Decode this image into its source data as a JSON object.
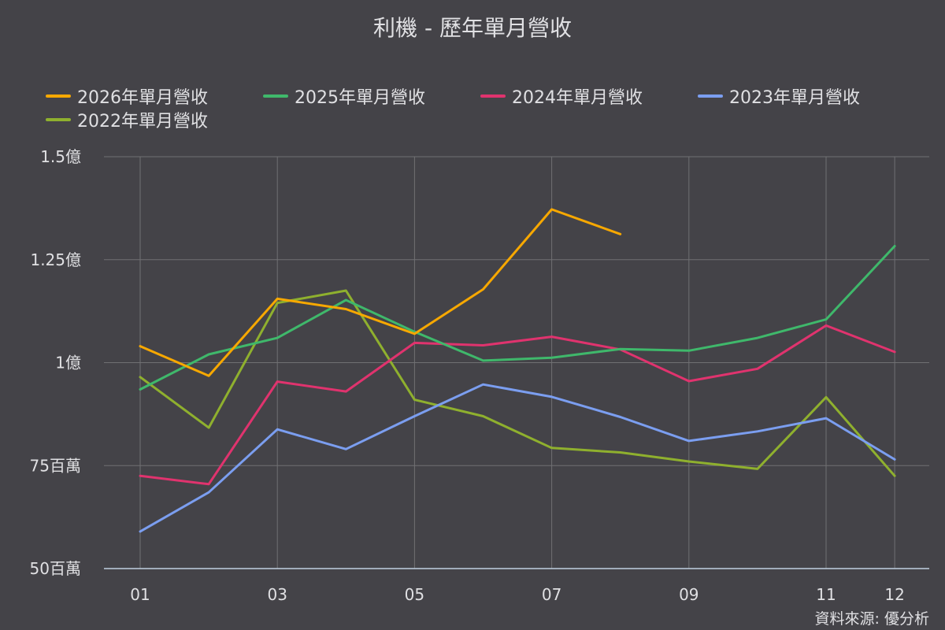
{
  "title": "利機 - 歷年單月營收",
  "source": "資料來源: 優分析",
  "colors": {
    "background": "#444348",
    "grid": "#707073",
    "axis": "#c0d0e0",
    "text": "#e0e0e3"
  },
  "chart_data": {
    "type": "line",
    "title": "利機 - 歷年單月營收",
    "x_categories": [
      "01",
      "02",
      "03",
      "04",
      "05",
      "06",
      "07",
      "08",
      "09",
      "10",
      "11",
      "12"
    ],
    "x_tick_labels": [
      {
        "index": 0,
        "label": "01"
      },
      {
        "index": 2,
        "label": "03"
      },
      {
        "index": 4,
        "label": "05"
      },
      {
        "index": 6,
        "label": "07"
      },
      {
        "index": 8,
        "label": "09"
      },
      {
        "index": 10,
        "label": "11"
      },
      {
        "index": 11,
        "label": "12"
      }
    ],
    "y_unit": "millions",
    "ylim": [
      50,
      150
    ],
    "y_ticks": [
      {
        "value": 150,
        "label": "1.5億"
      },
      {
        "value": 125,
        "label": "1.25億"
      },
      {
        "value": 100,
        "label": "1億"
      },
      {
        "value": 75,
        "label": "75百萬"
      },
      {
        "value": 50,
        "label": "50百萬"
      }
    ],
    "grid": true,
    "legend_position": "top",
    "series": [
      {
        "name": "2026年單月營收",
        "color": "#f7a800",
        "values": [
          104.0,
          96.8,
          115.5,
          113.0,
          107.0,
          117.8,
          137.2,
          131.2
        ]
      },
      {
        "name": "2025年單月營收",
        "color": "#3fb86b",
        "values": [
          93.5,
          102.0,
          106.0,
          115.2,
          107.5,
          100.5,
          101.2,
          103.3,
          102.9,
          106.0,
          110.5,
          128.3
        ]
      },
      {
        "name": "2024年單月營收",
        "color": "#e0336e",
        "values": [
          72.5,
          70.5,
          95.4,
          93.0,
          104.8,
          104.2,
          106.3,
          103.2,
          95.5,
          98.5,
          109.0,
          102.6
        ]
      },
      {
        "name": "2023年單月營收",
        "color": "#7b9ef0",
        "values": [
          59.0,
          68.5,
          83.8,
          79.0,
          87.0,
          94.7,
          91.7,
          86.8,
          81.0,
          83.3,
          86.5,
          76.5
        ]
      },
      {
        "name": "2022年單月營收",
        "color": "#8fb02e",
        "values": [
          96.5,
          84.2,
          114.5,
          117.5,
          91.0,
          87.0,
          79.3,
          78.2,
          76.0,
          74.2,
          91.6,
          72.5
        ]
      }
    ]
  }
}
